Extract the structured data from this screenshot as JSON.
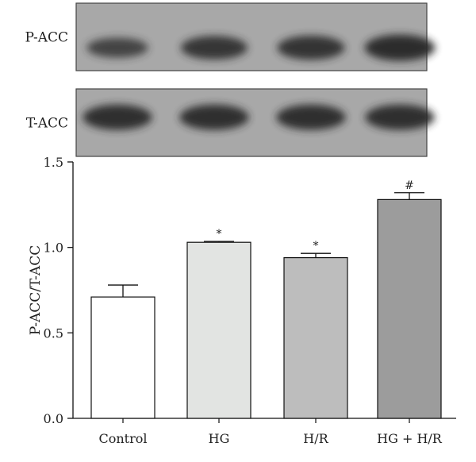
{
  "blot": {
    "rows": [
      {
        "label": "P-ACC",
        "band_intensity": [
          0.55,
          0.78,
          0.82,
          0.95
        ]
      },
      {
        "label": "T-ACC",
        "band_intensity": [
          0.9,
          0.9,
          0.9,
          0.9
        ]
      }
    ],
    "colors": {
      "background": "#a8a8a8",
      "band": "#2b2b2b",
      "border": "#444444"
    }
  },
  "chart_data": {
    "type": "bar",
    "categories": [
      "Control",
      "HG",
      "H/R",
      "HG + H/R"
    ],
    "values": [
      0.71,
      1.03,
      0.94,
      1.28
    ],
    "errors": [
      0.07,
      0.005,
      0.025,
      0.04
    ],
    "annotations": [
      "",
      "*",
      "*",
      "#"
    ],
    "bar_colors": [
      "#ffffff",
      "#e2e4e2",
      "#bdbdbd",
      "#9c9c9c"
    ],
    "xlabel": "",
    "ylabel": "P-ACC/T-ACC",
    "ylim": [
      0,
      1.5
    ],
    "yticks": [
      0.0,
      0.5,
      1.0,
      1.5
    ],
    "ytick_labels": [
      "0.0",
      "0.5",
      "1.0",
      "1.5"
    ],
    "grid": false,
    "legend": "none"
  }
}
